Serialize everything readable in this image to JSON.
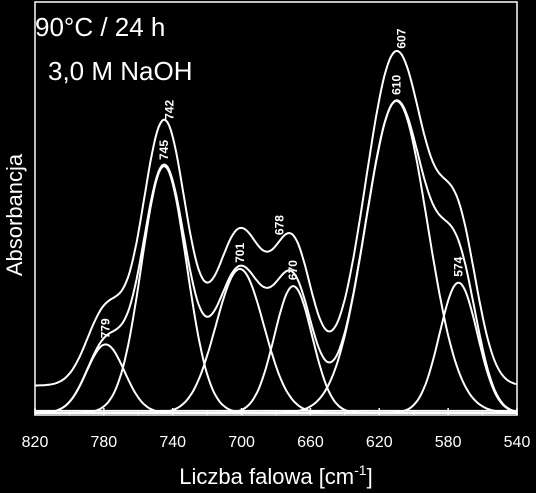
{
  "chart_data": {
    "type": "line",
    "annotation_lines": [
      "90°C / 24 h",
      "3,0 M NaOH"
    ],
    "xlabel_text": "Liczba falowa [cm",
    "xlabel_sup": "-1",
    "xlabel_close": "]",
    "ylabel": "Absorbancja",
    "xlim": [
      820,
      540
    ],
    "x_reversed": true,
    "xticks": [
      820,
      780,
      740,
      700,
      660,
      620,
      580,
      540
    ],
    "ylim": [
      0,
      1
    ],
    "grid": false,
    "line_color": "#ffffff",
    "background": "#000000",
    "baseline": 0.02,
    "components": [
      {
        "center": 779,
        "amplitude": 0.2,
        "width": 11,
        "label": "779"
      },
      {
        "center": 745,
        "amplitude": 0.72,
        "width": 13,
        "label": "745"
      },
      {
        "center": 701,
        "amplitude": 0.42,
        "width": 14,
        "label": "701"
      },
      {
        "center": 670,
        "amplitude": 0.37,
        "width": 11,
        "label": "670"
      },
      {
        "center": 610,
        "amplitude": 0.91,
        "width": 18,
        "label": "610"
      },
      {
        "center": 574,
        "amplitude": 0.38,
        "width": 11,
        "label": "574"
      }
    ],
    "envelope_peaks": [
      "742",
      "678",
      "607"
    ],
    "series": [
      {
        "role": "measured",
        "offset": 0.08
      },
      {
        "role": "fit-sum",
        "offset": 0.0
      }
    ]
  }
}
